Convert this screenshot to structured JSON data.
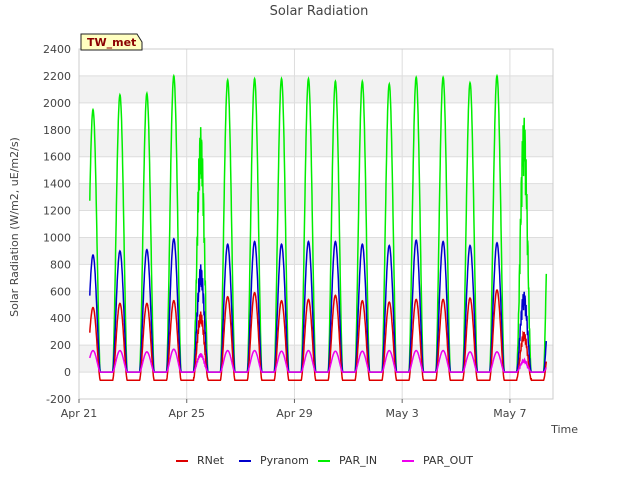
{
  "chart_data": {
    "type": "line",
    "title": "Solar Radiation",
    "station_label": "TW_met",
    "xlabel": "Time",
    "ylabel": "Solar Radiation (W/m2, uE/m2/s)",
    "xlim": [
      0,
      17.6
    ],
    "ylim": [
      -200,
      2400
    ],
    "yticks": [
      -200,
      0,
      200,
      400,
      600,
      800,
      1000,
      1200,
      1400,
      1600,
      1800,
      2000,
      2200,
      2400
    ],
    "xticks": [
      {
        "label": "Apr 21",
        "day": 0
      },
      {
        "label": "Apr 25",
        "day": 4
      },
      {
        "label": "Apr 29",
        "day": 8
      },
      {
        "label": "May 3",
        "day": 12
      },
      {
        "label": "May 7",
        "day": 16
      }
    ],
    "grid": true,
    "legend_position": "bottom",
    "days": [
      "Apr 21",
      "Apr 22",
      "Apr 23",
      "Apr 24",
      "Apr 25",
      "Apr 26",
      "Apr 27",
      "Apr 28",
      "Apr 29",
      "Apr 30",
      "May 1",
      "May 2",
      "May 3",
      "May 4",
      "May 5",
      "May 6",
      "May 7"
    ],
    "series": [
      {
        "name": "RNet",
        "color": "#dd0000",
        "night": -60,
        "daily_peak": [
          480,
          510,
          510,
          530,
          450,
          560,
          590,
          530,
          540,
          570,
          530,
          520,
          540,
          540,
          550,
          610,
          300
        ]
      },
      {
        "name": "Pyranom",
        "color": "#0000cc",
        "night": 0,
        "daily_peak": [
          870,
          900,
          910,
          990,
          800,
          950,
          970,
          950,
          970,
          970,
          950,
          940,
          980,
          970,
          940,
          960,
          600
        ]
      },
      {
        "name": "PAR_IN",
        "color": "#00ee00",
        "night": 0,
        "daily_peak": [
          1950,
          2060,
          2070,
          2200,
          1820,
          2170,
          2180,
          2180,
          2180,
          2160,
          2160,
          2140,
          2190,
          2190,
          2150,
          2200,
          1900
        ]
      },
      {
        "name": "PAR_OUT",
        "color": "#ee00ee",
        "night": 0,
        "daily_peak": [
          160,
          160,
          150,
          170,
          140,
          160,
          160,
          155,
          160,
          155,
          155,
          160,
          160,
          160,
          150,
          150,
          90
        ]
      }
    ]
  }
}
